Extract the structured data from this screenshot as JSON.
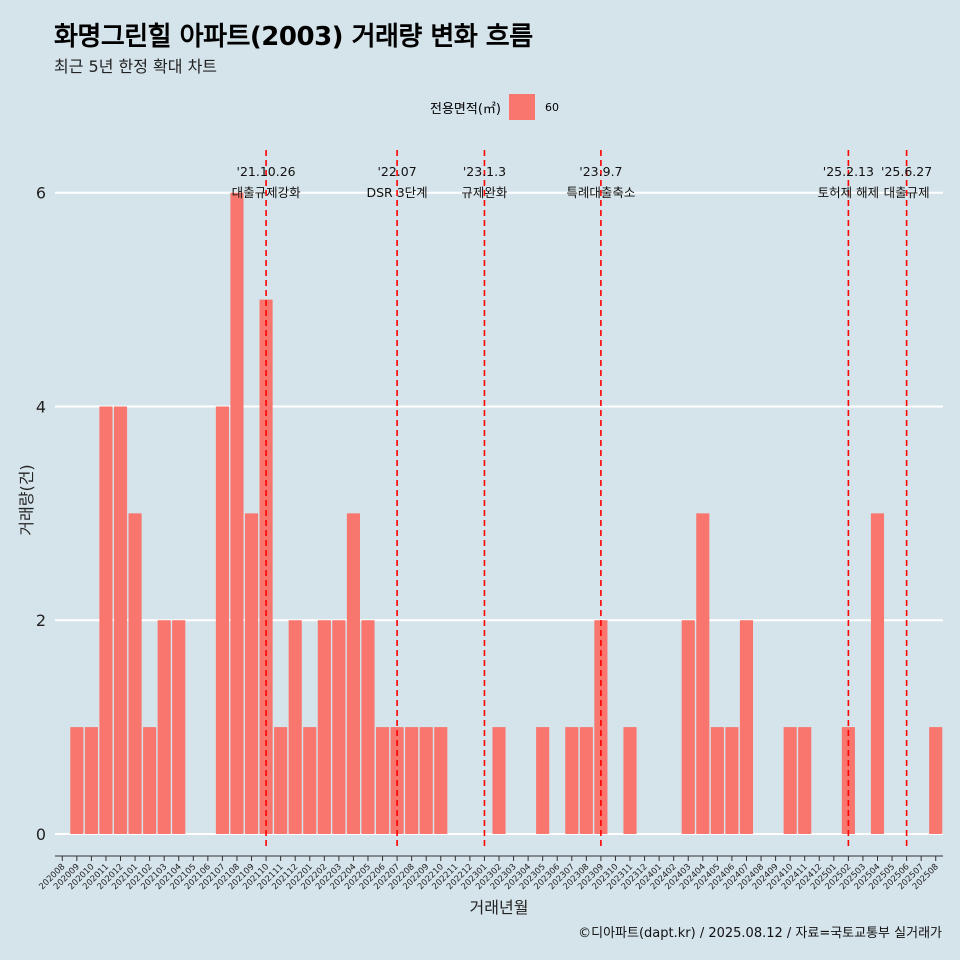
{
  "title": "화명그린힐 아파트(2003) 거래량 변화 흐름",
  "subtitle": "최근 5년 한정 확대 차트",
  "caption": "©디아파트(dapt.kr) / 2025.08.12 / 자료=국토교통부 실거래가",
  "legend": {
    "title": "전용면적(㎡)",
    "label": "60",
    "color": "#f8766d"
  },
  "colors": {
    "background": "#d5e3ea",
    "bar": "#f8766d",
    "event_line": "#ff0000",
    "grid": "#ffffff"
  },
  "chart_data": {
    "type": "bar",
    "xlabel": "거래년월",
    "ylabel": "거래량(건)",
    "ylim": [
      -0.15,
      6.4
    ],
    "yticks": [
      0,
      2,
      4,
      6
    ],
    "categories": [
      "202008",
      "202009",
      "202010",
      "202011",
      "202012",
      "202101",
      "202102",
      "202103",
      "202104",
      "202105",
      "202106",
      "202107",
      "202108",
      "202109",
      "202110",
      "202111",
      "202112",
      "202201",
      "202202",
      "202203",
      "202204",
      "202205",
      "202206",
      "202207",
      "202208",
      "202209",
      "202210",
      "202211",
      "202212",
      "202301",
      "202302",
      "202303",
      "202304",
      "202305",
      "202306",
      "202307",
      "202308",
      "202309",
      "202310",
      "202311",
      "202312",
      "202401",
      "202402",
      "202403",
      "202404",
      "202405",
      "202406",
      "202407",
      "202408",
      "202409",
      "202410",
      "202411",
      "202412",
      "202501",
      "202502",
      "202503",
      "202504",
      "202505",
      "202506",
      "202507",
      "202508"
    ],
    "series": [
      {
        "name": "60",
        "values": [
          0,
          1,
          1,
          4,
          4,
          3,
          1,
          2,
          2,
          0,
          0,
          4,
          6,
          3,
          5,
          1,
          2,
          1,
          2,
          2,
          3,
          2,
          1,
          1,
          1,
          1,
          1,
          0,
          0,
          0,
          1,
          0,
          0,
          1,
          0,
          1,
          1,
          2,
          0,
          1,
          0,
          0,
          0,
          2,
          3,
          1,
          1,
          2,
          0,
          0,
          1,
          1,
          0,
          0,
          1,
          0,
          3,
          0,
          0,
          0,
          1
        ]
      }
    ],
    "events": [
      {
        "date": "'21.10.26",
        "label": "대출규제강화",
        "at_category": "202110",
        "offset": 0
      },
      {
        "date": "'22.07",
        "label": "DSR 3단계",
        "at_category": "202207",
        "offset": 0
      },
      {
        "date": "'23.1.3",
        "label": "규제완화",
        "at_category": "202301",
        "offset": 0
      },
      {
        "date": "'23.9.7",
        "label": "특례대출축소",
        "at_category": "202309",
        "offset": 0
      },
      {
        "date": "'25.2.13",
        "label": "토허제 해제",
        "at_category": "202502",
        "offset": 0
      },
      {
        "date": "'25.6.27",
        "label": "대출규제",
        "at_category": "202506",
        "offset": 0
      }
    ],
    "grid": true,
    "legend_position": "top"
  }
}
